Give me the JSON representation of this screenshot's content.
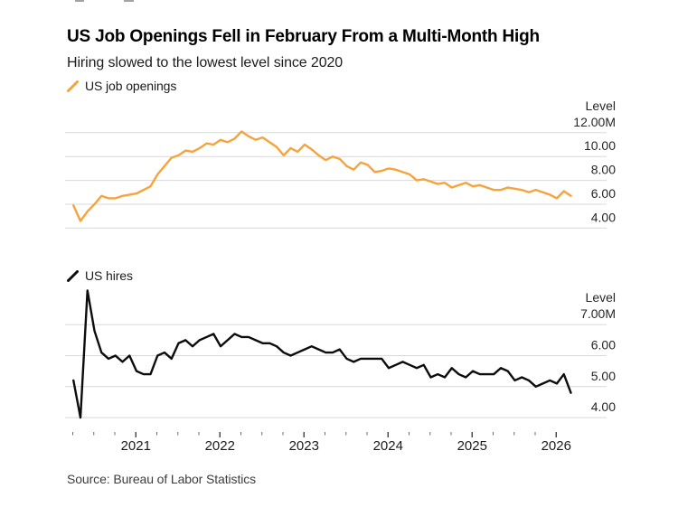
{
  "header": {
    "title": "US Job Openings Fell in February From a Multi-Month High",
    "subtitle": "Hiring slowed to the lowest level since 2020"
  },
  "source": "Source: Bureau of Labor Statistics",
  "x_axis": {
    "year_labels": [
      "2021",
      "2022",
      "2023",
      "2024",
      "2025",
      "2026"
    ]
  },
  "colors": {
    "openings_line": "#F7A33C",
    "hires_line": "#0d0d0d",
    "gridline": "#d9d9d9",
    "axis_text": "#262626",
    "year_text": "#1c1c1c",
    "tick_minor": "#6b6b6b",
    "tick_major": "#3f3f3f"
  },
  "chart_data": [
    {
      "type": "line",
      "title": "US Job Openings Fell in February From a Multi-Month High",
      "subtitle": "Hiring slowed to the lowest level since 2020",
      "series_name": "US job openings",
      "color": "#F7A33C",
      "unit": "millions",
      "frequency": "monthly",
      "x_start_month": "2020-03",
      "x_end_month": "2026-02",
      "x_tick_years": [
        2021,
        2022,
        2023,
        2024,
        2025,
        2026
      ],
      "ylabel": "Level",
      "y_tick_labels": [
        "12.00M",
        "10.00",
        "8.00",
        "6.00",
        "4.00"
      ],
      "y_tick_values": [
        12,
        10,
        8,
        6,
        4
      ],
      "ylim": [
        3.6,
        12.6
      ],
      "grid": "horizontal",
      "legend_position": "top-left",
      "values": [
        5.9,
        4.6,
        5.4,
        6.0,
        6.7,
        6.5,
        6.5,
        6.7,
        6.8,
        6.9,
        7.2,
        7.5,
        8.5,
        9.2,
        9.9,
        10.1,
        10.5,
        10.4,
        10.7,
        11.1,
        11.0,
        11.4,
        11.2,
        11.5,
        12.1,
        11.7,
        11.4,
        11.6,
        11.2,
        10.8,
        10.1,
        10.7,
        10.4,
        11.0,
        10.6,
        10.1,
        9.7,
        10.0,
        9.8,
        9.2,
        8.9,
        9.5,
        9.3,
        8.7,
        8.8,
        9.0,
        8.9,
        8.7,
        8.5,
        8.0,
        8.1,
        7.9,
        7.7,
        7.8,
        7.4,
        7.6,
        7.8,
        7.5,
        7.6,
        7.4,
        7.2,
        7.2,
        7.4,
        7.3,
        7.2,
        7.0,
        7.2,
        7.0,
        6.8,
        6.5,
        7.1,
        6.7
      ]
    },
    {
      "type": "line",
      "series_name": "US hires",
      "color": "#0d0d0d",
      "unit": "millions",
      "frequency": "monthly",
      "x_start_month": "2020-03",
      "x_end_month": "2026-02",
      "x_tick_years": [
        2021,
        2022,
        2023,
        2024,
        2025,
        2026
      ],
      "ylabel": "Level",
      "y_tick_labels": [
        "7.00M",
        "6.00",
        "5.00",
        "4.00"
      ],
      "y_tick_values": [
        7,
        6,
        5,
        4
      ],
      "ylim": [
        3.8,
        8.2
      ],
      "grid": "horizontal",
      "legend_position": "top-left",
      "values": [
        5.2,
        4.0,
        8.1,
        6.8,
        6.1,
        5.9,
        6.0,
        5.8,
        6.0,
        5.5,
        5.4,
        5.4,
        6.0,
        6.1,
        5.9,
        6.4,
        6.5,
        6.3,
        6.5,
        6.6,
        6.7,
        6.3,
        6.5,
        6.7,
        6.6,
        6.6,
        6.5,
        6.4,
        6.4,
        6.3,
        6.1,
        6.0,
        6.1,
        6.2,
        6.3,
        6.2,
        6.1,
        6.1,
        6.2,
        5.9,
        5.8,
        5.9,
        5.9,
        5.9,
        5.9,
        5.6,
        5.7,
        5.8,
        5.7,
        5.6,
        5.7,
        5.3,
        5.4,
        5.3,
        5.6,
        5.4,
        5.3,
        5.5,
        5.4,
        5.4,
        5.4,
        5.6,
        5.5,
        5.2,
        5.3,
        5.2,
        5.0,
        5.1,
        5.2,
        5.1,
        5.4,
        4.8
      ]
    }
  ]
}
